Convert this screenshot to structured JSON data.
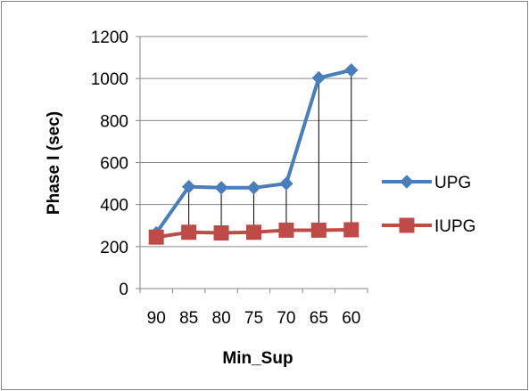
{
  "chart_data": {
    "type": "line",
    "categories": [
      "90",
      "85",
      "80",
      "75",
      "70",
      "65",
      "60"
    ],
    "series": [
      {
        "name": "UPG",
        "values": [
          265,
          485,
          480,
          480,
          500,
          1003,
          1040
        ],
        "color": "#4A7EBB",
        "marker": "diamond"
      },
      {
        "name": "IUPG",
        "values": [
          245,
          268,
          265,
          268,
          278,
          278,
          280
        ],
        "color": "#BE4B48",
        "marker": "square"
      }
    ],
    "drop_lines": true,
    "xlabel": "Min_Sup",
    "ylabel": "Phase I (sec)",
    "ylim": [
      0,
      1200
    ],
    "yticks": [
      "0",
      "200",
      "400",
      "600",
      "800",
      "1000",
      "1200"
    ],
    "grid": true,
    "legend_position": "right"
  }
}
